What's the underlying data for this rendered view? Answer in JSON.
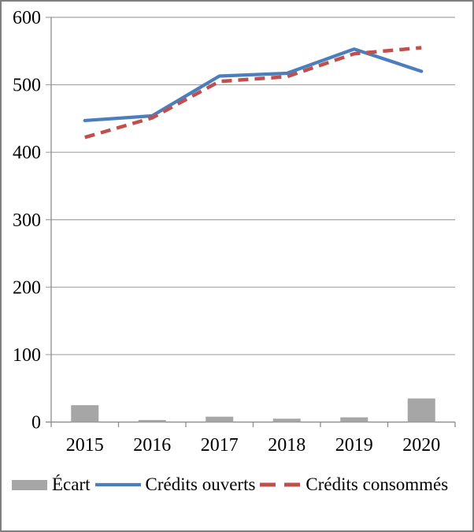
{
  "window": {
    "background": "#ffffff",
    "border_color": "#7f7f7f"
  },
  "chart_data": {
    "type": "combo",
    "title": "",
    "xlabel": "",
    "ylabel": "",
    "categories": [
      "2015",
      "2016",
      "2017",
      "2018",
      "2019",
      "2020"
    ],
    "series": [
      {
        "name": "Écart",
        "type": "bar",
        "line_style": "none",
        "color": "#a6a6a6",
        "values": [
          25,
          3,
          8,
          5,
          7,
          35
        ]
      },
      {
        "name": "Crédits ouverts",
        "type": "line",
        "line_style": "solid",
        "color": "#4d7ebc",
        "values": [
          447,
          454,
          513,
          517,
          553,
          520
        ]
      },
      {
        "name": "Crédits consommés",
        "type": "line",
        "line_style": "dashed",
        "color": "#c0504d",
        "values": [
          422,
          451,
          505,
          512,
          546,
          555
        ]
      }
    ],
    "ylim": [
      0,
      600
    ],
    "yticks": [
      0,
      100,
      200,
      300,
      400,
      500,
      600
    ],
    "grid": true,
    "legend_position": "bottom",
    "gridline_color": "#a3a3a3",
    "axis_color": "#8c8c8c",
    "tick_label_color": "#000000"
  }
}
